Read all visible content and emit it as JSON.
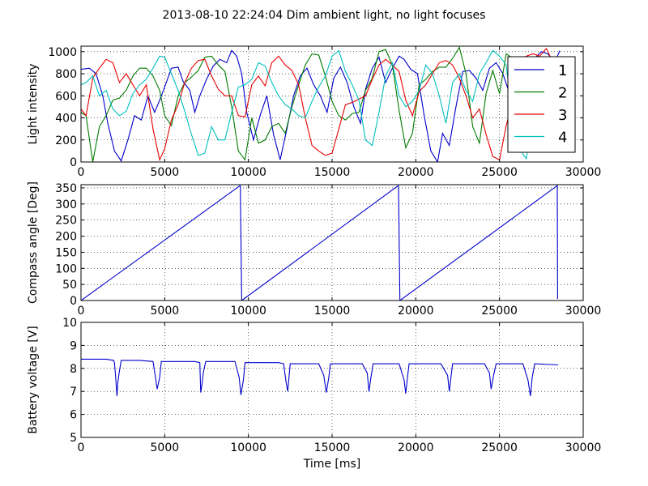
{
  "title": "2013-08-10 22:24:04 Dim ambient light, no light focuses",
  "colors": {
    "1": "#0000cc",
    "2": "#007a00",
    "3": "#e60000",
    "4": "#00bfbf"
  },
  "chart_data": [
    {
      "type": "line",
      "ylabel": "Light intensity",
      "xlabel": "",
      "xlim": [
        0,
        30000
      ],
      "ylim": [
        0,
        1050
      ],
      "xticks": [
        0,
        5000,
        10000,
        15000,
        20000,
        25000,
        30000
      ],
      "yticks": [
        0,
        200,
        400,
        600,
        800,
        1000
      ],
      "grid": true,
      "legend": "top-right",
      "series": [
        {
          "name": "1",
          "color": "#0000cc",
          "x": [
            0,
            500,
            900,
            1300,
            1600,
            2000,
            2400,
            2800,
            3200,
            3600,
            4000,
            4400,
            4700,
            5000,
            5400,
            5800,
            6100,
            6500,
            6800,
            7100,
            7500,
            7900,
            8300,
            8700,
            9000,
            9300,
            9600,
            9900,
            10300,
            10700,
            11100,
            11500,
            11900,
            12300,
            12700,
            13100,
            13500,
            13900,
            14300,
            14700,
            15100,
            15500,
            15900,
            16300,
            16700,
            17000,
            17400,
            17800,
            18200,
            18600,
            19000,
            19300,
            19700,
            20100,
            20500,
            20900,
            21300,
            21600,
            22000,
            22400,
            22800,
            23200,
            23600,
            24000,
            24400,
            24800,
            25200,
            25600,
            26000,
            26300,
            26700,
            27100,
            27500,
            27900,
            28300,
            28600
          ],
          "y": [
            840,
            850,
            800,
            600,
            350,
            100,
            10,
            200,
            420,
            380,
            600,
            450,
            560,
            680,
            850,
            860,
            730,
            650,
            450,
            600,
            750,
            870,
            930,
            900,
            1010,
            960,
            800,
            450,
            200,
            420,
            600,
            250,
            20,
            300,
            600,
            780,
            850,
            700,
            600,
            450,
            760,
            860,
            720,
            500,
            350,
            660,
            850,
            950,
            720,
            850,
            960,
            930,
            840,
            800,
            420,
            100,
            0,
            260,
            150,
            500,
            820,
            830,
            760,
            650,
            850,
            900,
            800,
            620,
            450,
            600,
            880,
            940,
            1000,
            980,
            900,
            1010
          ]
        },
        {
          "name": "2",
          "color": "#007a00",
          "x": [
            0,
            300,
            700,
            1100,
            1500,
            1900,
            2300,
            2700,
            3100,
            3500,
            3900,
            4300,
            4700,
            5000,
            5400,
            5800,
            6200,
            6600,
            7000,
            7400,
            7800,
            8200,
            8600,
            9000,
            9400,
            9800,
            10200,
            10600,
            11000,
            11400,
            11800,
            12200,
            12600,
            13000,
            13400,
            13800,
            14200,
            14600,
            15000,
            15400,
            15800,
            16200,
            16600,
            17000,
            17400,
            17800,
            18200,
            18600,
            19000,
            19400,
            19800,
            20200,
            20600,
            21000,
            21400,
            21800,
            22200,
            22600,
            23000,
            23400,
            23800,
            24200,
            24600,
            25000,
            25400,
            25800,
            26200,
            26600,
            27000,
            27400,
            27800,
            28200
          ],
          "y": [
            450,
            420,
            0,
            320,
            420,
            560,
            580,
            650,
            780,
            850,
            850,
            780,
            650,
            420,
            330,
            600,
            720,
            770,
            830,
            950,
            960,
            880,
            820,
            500,
            100,
            20,
            400,
            170,
            200,
            320,
            350,
            260,
            500,
            700,
            880,
            980,
            970,
            780,
            550,
            420,
            380,
            440,
            450,
            650,
            760,
            1000,
            1020,
            880,
            470,
            130,
            260,
            700,
            750,
            820,
            860,
            860,
            940,
            1040,
            800,
            320,
            170,
            620,
            830,
            620,
            980,
            940,
            820,
            730,
            480,
            620,
            500,
            640
          ]
        },
        {
          "name": "3",
          "color": "#e60000",
          "x": [
            0,
            300,
            700,
            1100,
            1500,
            1900,
            2300,
            2700,
            3100,
            3500,
            3900,
            4300,
            4700,
            5000,
            5400,
            5800,
            6200,
            6600,
            7000,
            7400,
            7800,
            8200,
            8600,
            9000,
            9400,
            9800,
            10200,
            10600,
            11000,
            11400,
            11800,
            12200,
            12600,
            13000,
            13400,
            13800,
            14200,
            14600,
            15000,
            15400,
            15800,
            16200,
            16600,
            17000,
            17400,
            17800,
            18200,
            18600,
            19000,
            19400,
            19800,
            20200,
            20600,
            21000,
            21400,
            21800,
            22200,
            22600,
            23000,
            23400,
            23800,
            24200,
            24600,
            25000,
            25400,
            25800,
            26200,
            26600,
            27000,
            27400,
            27800,
            28200
          ],
          "y": [
            480,
            420,
            760,
            850,
            930,
            900,
            720,
            800,
            700,
            600,
            700,
            300,
            20,
            120,
            380,
            520,
            720,
            850,
            920,
            930,
            780,
            660,
            600,
            600,
            420,
            410,
            700,
            780,
            690,
            900,
            960,
            880,
            830,
            700,
            400,
            150,
            100,
            60,
            80,
            300,
            520,
            540,
            570,
            600,
            750,
            880,
            930,
            880,
            820,
            560,
            420,
            640,
            700,
            800,
            900,
            920,
            880,
            760,
            600,
            400,
            480,
            250,
            50,
            20,
            330,
            560,
            880,
            960,
            980,
            960,
            1030,
            900
          ]
        },
        {
          "name": "4",
          "color": "#00bfbf",
          "x": [
            0,
            300,
            700,
            1100,
            1500,
            1900,
            2300,
            2700,
            3100,
            3500,
            3900,
            4300,
            4700,
            5000,
            5400,
            5800,
            6200,
            6600,
            7000,
            7400,
            7800,
            8200,
            8600,
            9000,
            9400,
            9800,
            10200,
            10600,
            11000,
            11400,
            11800,
            12200,
            12600,
            13000,
            13400,
            13800,
            14200,
            14600,
            15000,
            15400,
            15800,
            16200,
            16600,
            17000,
            17400,
            17800,
            18200,
            18600,
            19000,
            19400,
            19800,
            20200,
            20600,
            21000,
            21400,
            21800,
            22200,
            22600,
            23000,
            23400,
            23800,
            24200,
            24600,
            25000,
            25400,
            25800,
            26200,
            26600,
            27000,
            27400,
            27800,
            28200
          ],
          "y": [
            700,
            720,
            780,
            600,
            650,
            480,
            420,
            460,
            620,
            700,
            750,
            850,
            960,
            950,
            800,
            650,
            460,
            250,
            60,
            80,
            320,
            200,
            200,
            450,
            680,
            700,
            750,
            900,
            870,
            720,
            600,
            520,
            480,
            420,
            400,
            550,
            680,
            780,
            960,
            1010,
            820,
            700,
            560,
            200,
            150,
            450,
            780,
            900,
            600,
            500,
            550,
            650,
            880,
            800,
            600,
            350,
            720,
            800,
            650,
            550,
            800,
            900,
            1010,
            960,
            880,
            400,
            120,
            30,
            400,
            650,
            620,
            700
          ]
        }
      ]
    },
    {
      "type": "line",
      "ylabel": "Compass angle [Deg]",
      "xlabel": "",
      "xlim": [
        0,
        30000
      ],
      "ylim": [
        0,
        360
      ],
      "xticks": [
        0,
        5000,
        10000,
        15000,
        20000,
        25000,
        30000
      ],
      "yticks": [
        0,
        50,
        100,
        150,
        200,
        250,
        300,
        350
      ],
      "grid": true,
      "series": [
        {
          "name": "",
          "color": "#0000cc",
          "x": [
            0,
            9500,
            9520,
            9600,
            18950,
            18970,
            19050,
            28450,
            28470
          ],
          "y": [
            0,
            357,
            355,
            0,
            357,
            355,
            0,
            357,
            5
          ]
        }
      ]
    },
    {
      "type": "line",
      "ylabel": "Battery voltage [V]",
      "xlabel": "Time [ms]",
      "xlim": [
        0,
        30000
      ],
      "ylim": [
        5,
        10
      ],
      "xticks": [
        0,
        5000,
        10000,
        15000,
        20000,
        25000,
        30000
      ],
      "yticks": [
        5,
        6,
        7,
        8,
        9,
        10
      ],
      "grid": true,
      "series": [
        {
          "name": "",
          "color": "#0000cc",
          "x": [
            0,
            1500,
            1950,
            2000,
            2050,
            2150,
            2200,
            2300,
            2400,
            3500,
            4300,
            4450,
            4550,
            4700,
            4800,
            6800,
            7100,
            7150,
            7250,
            7300,
            7450,
            9200,
            9450,
            9550,
            9700,
            9800,
            11800,
            12100,
            12250,
            12350,
            12500,
            14200,
            14500,
            14650,
            14800,
            14900,
            16800,
            17100,
            17200,
            17300,
            17450,
            19000,
            19300,
            19400,
            19500,
            19600,
            21500,
            21900,
            22000,
            22100,
            22200,
            24100,
            24400,
            24500,
            24650,
            24800,
            26400,
            26700,
            26850,
            26950,
            27100,
            28500
          ],
          "y": [
            8.4,
            8.4,
            8.35,
            8.25,
            7.8,
            6.8,
            7.4,
            7.9,
            8.35,
            8.35,
            8.3,
            7.6,
            7.1,
            7.6,
            8.3,
            8.3,
            8.25,
            6.95,
            7.4,
            7.8,
            8.3,
            8.3,
            7.6,
            6.85,
            7.5,
            8.25,
            8.25,
            8.2,
            7.4,
            7.0,
            8.2,
            8.2,
            7.7,
            6.95,
            7.6,
            8.2,
            8.2,
            7.8,
            7.0,
            7.5,
            8.2,
            8.2,
            7.5,
            6.9,
            7.6,
            8.2,
            8.2,
            7.7,
            7.0,
            7.6,
            8.2,
            8.2,
            7.8,
            7.1,
            7.7,
            8.2,
            8.2,
            7.5,
            6.8,
            7.6,
            8.2,
            8.15
          ]
        }
      ]
    }
  ]
}
